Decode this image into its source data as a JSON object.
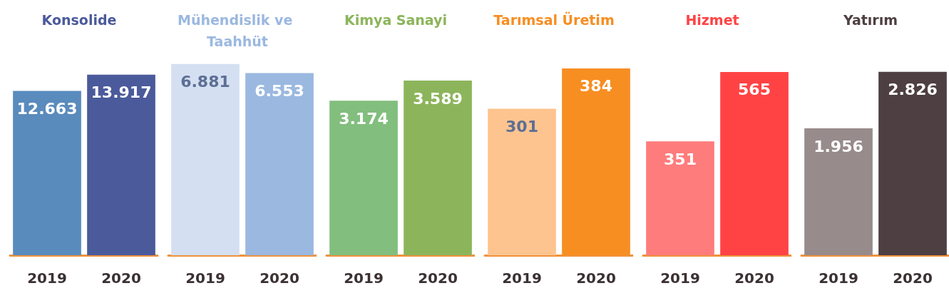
{
  "chart_data": [
    {
      "type": "bar",
      "title": "Konsolide",
      "categories": [
        "2019",
        "2020"
      ],
      "values": [
        12663,
        13917
      ],
      "value_labels": [
        "12.663",
        "13.917"
      ],
      "colors": [
        "#5a8bbd",
        "#4b5a9b"
      ],
      "tick_labels": "x"
    },
    {
      "type": "bar",
      "title": "Mühendislik ve Taahhüt",
      "categories": [
        "2019",
        "2020"
      ],
      "values": [
        6881,
        6553
      ],
      "value_labels": [
        "6.881",
        "6.553"
      ],
      "colors": [
        "#d5dff2",
        "#9bb8e0"
      ],
      "tick_labels": "x"
    },
    {
      "type": "bar",
      "title": "Kimya Sanayi",
      "categories": [
        "2019",
        "2020"
      ],
      "values": [
        3174,
        3589
      ],
      "value_labels": [
        "3.174",
        "3.589"
      ],
      "colors": [
        "#82be7d",
        "#8cb55b"
      ],
      "tick_labels": "x"
    },
    {
      "type": "bar",
      "title": "Tarımsal Üretim",
      "categories": [
        "2019",
        "2020"
      ],
      "values": [
        301,
        384
      ],
      "value_labels": [
        "301",
        "384"
      ],
      "colors": [
        "#fdc48f",
        "#f78e22"
      ],
      "tick_labels": "x"
    },
    {
      "type": "bar",
      "title": "Hizmet",
      "categories": [
        "2019",
        "2020"
      ],
      "values": [
        351,
        565
      ],
      "value_labels": [
        "351",
        "565"
      ],
      "colors": [
        "#ff7c7c",
        "#ff4345"
      ],
      "tick_labels": "x"
    },
    {
      "type": "bar",
      "title": "Yatırım",
      "categories": [
        "2019",
        "2020"
      ],
      "values": [
        1956,
        2826
      ],
      "value_labels": [
        "1.956",
        "2.826"
      ],
      "colors": [
        "#978b8b",
        "#4e3f42"
      ],
      "tick_labels": "x"
    }
  ]
}
